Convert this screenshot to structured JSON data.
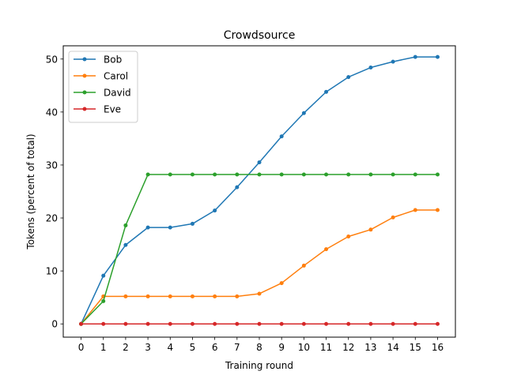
{
  "chart_data": {
    "type": "line",
    "title": "Crowdsource",
    "xlabel": "Training round",
    "ylabel": "Tokens (percent of total)",
    "x": [
      0,
      1,
      2,
      3,
      4,
      5,
      6,
      7,
      8,
      9,
      10,
      11,
      12,
      13,
      14,
      15,
      16
    ],
    "xlim": [
      -0.8,
      16.8
    ],
    "ylim": [
      -2.5,
      52.5
    ],
    "yticks": [
      0,
      10,
      20,
      30,
      40,
      50
    ],
    "grid": false,
    "legend_position": "top-left",
    "series": [
      {
        "name": "Bob",
        "color": "#1f77b4",
        "values": [
          0,
          9.1,
          14.9,
          18.2,
          18.2,
          18.9,
          21.4,
          25.8,
          30.5,
          35.4,
          39.8,
          43.8,
          46.6,
          48.4,
          49.5,
          50.4,
          50.4
        ]
      },
      {
        "name": "Carol",
        "color": "#ff7f0e",
        "values": [
          0,
          5.2,
          5.2,
          5.2,
          5.2,
          5.2,
          5.2,
          5.2,
          5.7,
          7.7,
          11.0,
          14.1,
          16.5,
          17.8,
          20.1,
          21.5,
          21.5
        ]
      },
      {
        "name": "David",
        "color": "#2ca02c",
        "values": [
          0,
          4.3,
          18.6,
          28.2,
          28.2,
          28.2,
          28.2,
          28.2,
          28.2,
          28.2,
          28.2,
          28.2,
          28.2,
          28.2,
          28.2,
          28.2,
          28.2
        ]
      },
      {
        "name": "Eve",
        "color": "#d62728",
        "values": [
          0,
          0,
          0,
          0,
          0,
          0,
          0,
          0,
          0,
          0,
          0,
          0,
          0,
          0,
          0,
          0,
          0
        ]
      }
    ]
  }
}
